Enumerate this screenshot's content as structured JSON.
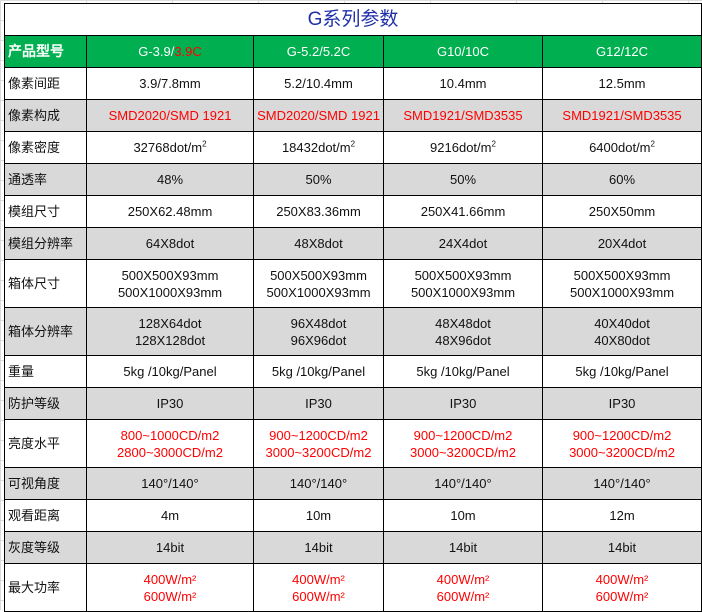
{
  "title": "G系列参数",
  "header": {
    "label": "产品型号",
    "models": [
      {
        "main": "G-3.9/",
        "accent": "3.9C"
      },
      {
        "main": "G-5.2/5.2C",
        "accent": ""
      },
      {
        "main": "G10/10C",
        "accent": ""
      },
      {
        "main": "G12/12C",
        "accent": ""
      }
    ]
  },
  "colors": {
    "header_bg": "#00b050",
    "gray_row": "#d9d9d9",
    "accent_red": "#ff0000",
    "title": "#1f2fa8"
  },
  "rows": [
    {
      "label": "像素间距",
      "gray": false,
      "red": false,
      "values": [
        [
          "3.9/7.8mm"
        ],
        [
          "5.2/10.4mm"
        ],
        [
          "10.4mm"
        ],
        [
          "12.5mm"
        ]
      ]
    },
    {
      "label": "像素构成",
      "gray": true,
      "red": true,
      "values": [
        [
          "SMD2020/SMD 1921"
        ],
        [
          "SMD2020/SMD 1921"
        ],
        [
          "SMD1921/SMD3535"
        ],
        [
          "SMD1921/SMD3535"
        ]
      ]
    },
    {
      "label": "像素密度",
      "gray": false,
      "red": false,
      "sup": "2",
      "values": [
        [
          "32768dot/m"
        ],
        [
          "18432dot/m"
        ],
        [
          "9216dot/m"
        ],
        [
          "6400dot/m"
        ]
      ]
    },
    {
      "label": "通透率",
      "gray": true,
      "red": false,
      "values": [
        [
          "48%"
        ],
        [
          "50%"
        ],
        [
          "50%"
        ],
        [
          "60%"
        ]
      ]
    },
    {
      "label": "模组尺寸",
      "gray": false,
      "red": false,
      "values": [
        [
          "250X62.48mm"
        ],
        [
          "250X83.36mm"
        ],
        [
          "250X41.66mm"
        ],
        [
          "250X50mm"
        ]
      ]
    },
    {
      "label": "模组分辨率",
      "gray": true,
      "red": false,
      "values": [
        [
          "64X8dot"
        ],
        [
          "48X8dot"
        ],
        [
          "24X4dot"
        ],
        [
          "20X4dot"
        ]
      ]
    },
    {
      "label": "箱体尺寸",
      "gray": false,
      "red": false,
      "values": [
        [
          "500X500X93mm",
          "500X1000X93mm"
        ],
        [
          "500X500X93mm",
          "500X1000X93mm"
        ],
        [
          "500X500X93mm",
          "500X1000X93mm"
        ],
        [
          "500X500X93mm",
          "500X1000X93mm"
        ]
      ]
    },
    {
      "label": "箱体分辨率",
      "gray": true,
      "red": false,
      "values": [
        [
          "128X64dot",
          "128X128dot"
        ],
        [
          "96X48dot",
          "96X96dot"
        ],
        [
          "48X48dot",
          "48X96dot"
        ],
        [
          "40X40dot",
          "40X80dot"
        ]
      ]
    },
    {
      "label": "重量",
      "gray": false,
      "red": false,
      "values": [
        [
          "5kg /10kg/Panel"
        ],
        [
          "5kg /10kg/Panel"
        ],
        [
          "5kg /10kg/Panel"
        ],
        [
          "5kg /10kg/Panel"
        ]
      ]
    },
    {
      "label": "防护等级",
      "gray": true,
      "red": false,
      "values": [
        [
          "IP30"
        ],
        [
          "IP30"
        ],
        [
          "IP30"
        ],
        [
          "IP30"
        ]
      ]
    },
    {
      "label": "亮度水平",
      "gray": false,
      "red": true,
      "values": [
        [
          "800~1000CD/m2",
          "2800~3000CD/m2"
        ],
        [
          "900~1200CD/m2",
          "3000~3200CD/m2"
        ],
        [
          "900~1200CD/m2",
          "3000~3200CD/m2"
        ],
        [
          "900~1200CD/m2",
          "3000~3200CD/m2"
        ]
      ]
    },
    {
      "label": "可视角度",
      "gray": true,
      "red": false,
      "values": [
        [
          "140°/140°"
        ],
        [
          "140°/140°"
        ],
        [
          "140°/140°"
        ],
        [
          "140°/140°"
        ]
      ]
    },
    {
      "label": "观看距离",
      "gray": false,
      "red": false,
      "values": [
        [
          "4m"
        ],
        [
          "10m"
        ],
        [
          "10m"
        ],
        [
          "12m"
        ]
      ]
    },
    {
      "label": "灰度等级",
      "gray": true,
      "red": false,
      "values": [
        [
          "14bit"
        ],
        [
          "14bit"
        ],
        [
          "14bit"
        ],
        [
          "14bit"
        ]
      ]
    },
    {
      "label": "最大功率",
      "gray": false,
      "red": true,
      "values": [
        [
          "400W/m²",
          "600W/m²"
        ],
        [
          "400W/m²",
          "600W/m²"
        ],
        [
          "400W/m²",
          "600W/m²"
        ],
        [
          "400W/m²",
          "600W/m²"
        ]
      ]
    }
  ]
}
